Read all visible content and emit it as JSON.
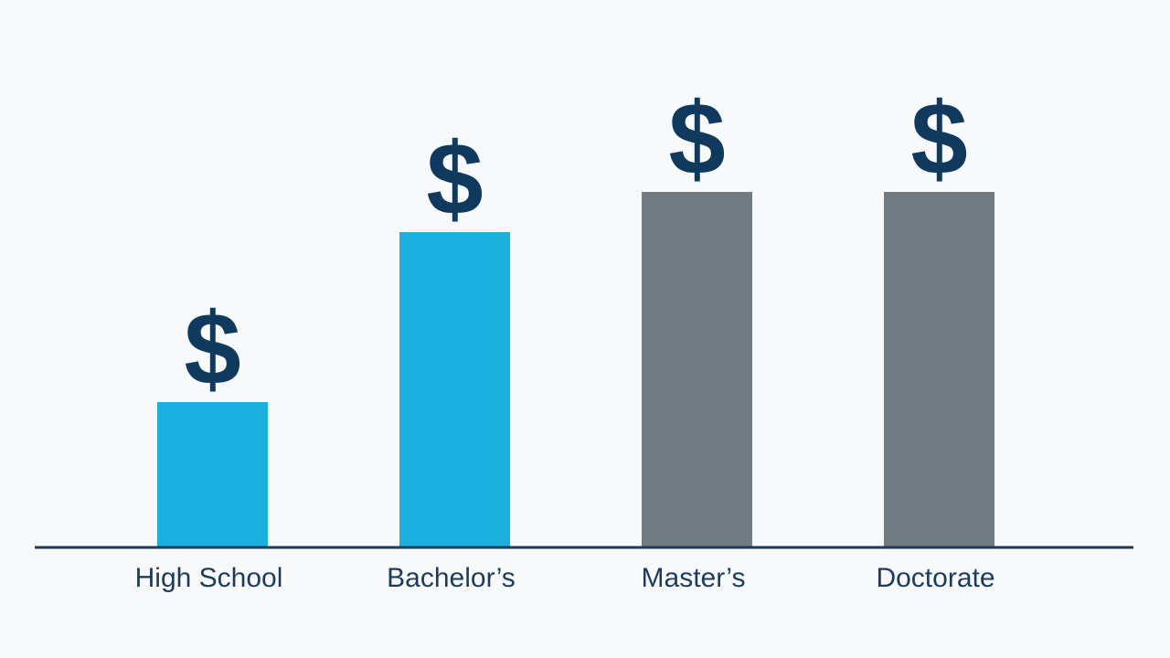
{
  "chart_data": {
    "type": "bar",
    "categories": [
      "High School",
      "Bachelor’s",
      "Master’s",
      "Doctorate"
    ],
    "values": [
      159,
      345,
      389,
      389
    ],
    "colors": [
      "#1ab0de",
      "#1ab0de",
      "#737b82",
      "#737b82"
    ],
    "annotations": [
      "$",
      "$",
      "$",
      "$"
    ],
    "ylim": [
      0,
      400
    ]
  }
}
